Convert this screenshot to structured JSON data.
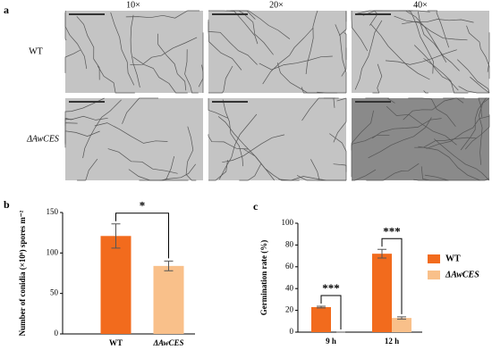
{
  "panel_a": {
    "label": "a",
    "columns": [
      "10×",
      "20×",
      "40×"
    ],
    "rows": [
      "WT",
      "ΔAwCES"
    ]
  },
  "chart_data": [
    {
      "type": "bar",
      "label": "b",
      "y_label": "Number of conidia (×10⁶) spores m⁻²",
      "categories": [
        "WT",
        "ΔAwCES"
      ],
      "values": [
        121,
        84
      ],
      "errors": [
        15,
        6
      ],
      "colors": [
        "#f26b1d",
        "#f9c08a"
      ],
      "ylim": [
        0,
        150
      ],
      "yticks": [
        0,
        50,
        100,
        150
      ],
      "annotations": [
        "*"
      ]
    },
    {
      "type": "bar",
      "label": "c",
      "y_label": "Germination rate (%)",
      "categories": [
        "9 h",
        "12 h"
      ],
      "series": [
        {
          "name": "WT",
          "color": "#f26b1d",
          "values": [
            23,
            72
          ],
          "errors": [
            0.8,
            4
          ]
        },
        {
          "name": "ΔAwCES",
          "color": "#f9c08a",
          "values": [
            0,
            13
          ],
          "errors": [
            0,
            1
          ]
        }
      ],
      "ylim": [
        0,
        100
      ],
      "yticks": [
        0,
        20,
        40,
        60,
        80,
        100
      ],
      "annotations": [
        "***",
        "***"
      ]
    }
  ]
}
